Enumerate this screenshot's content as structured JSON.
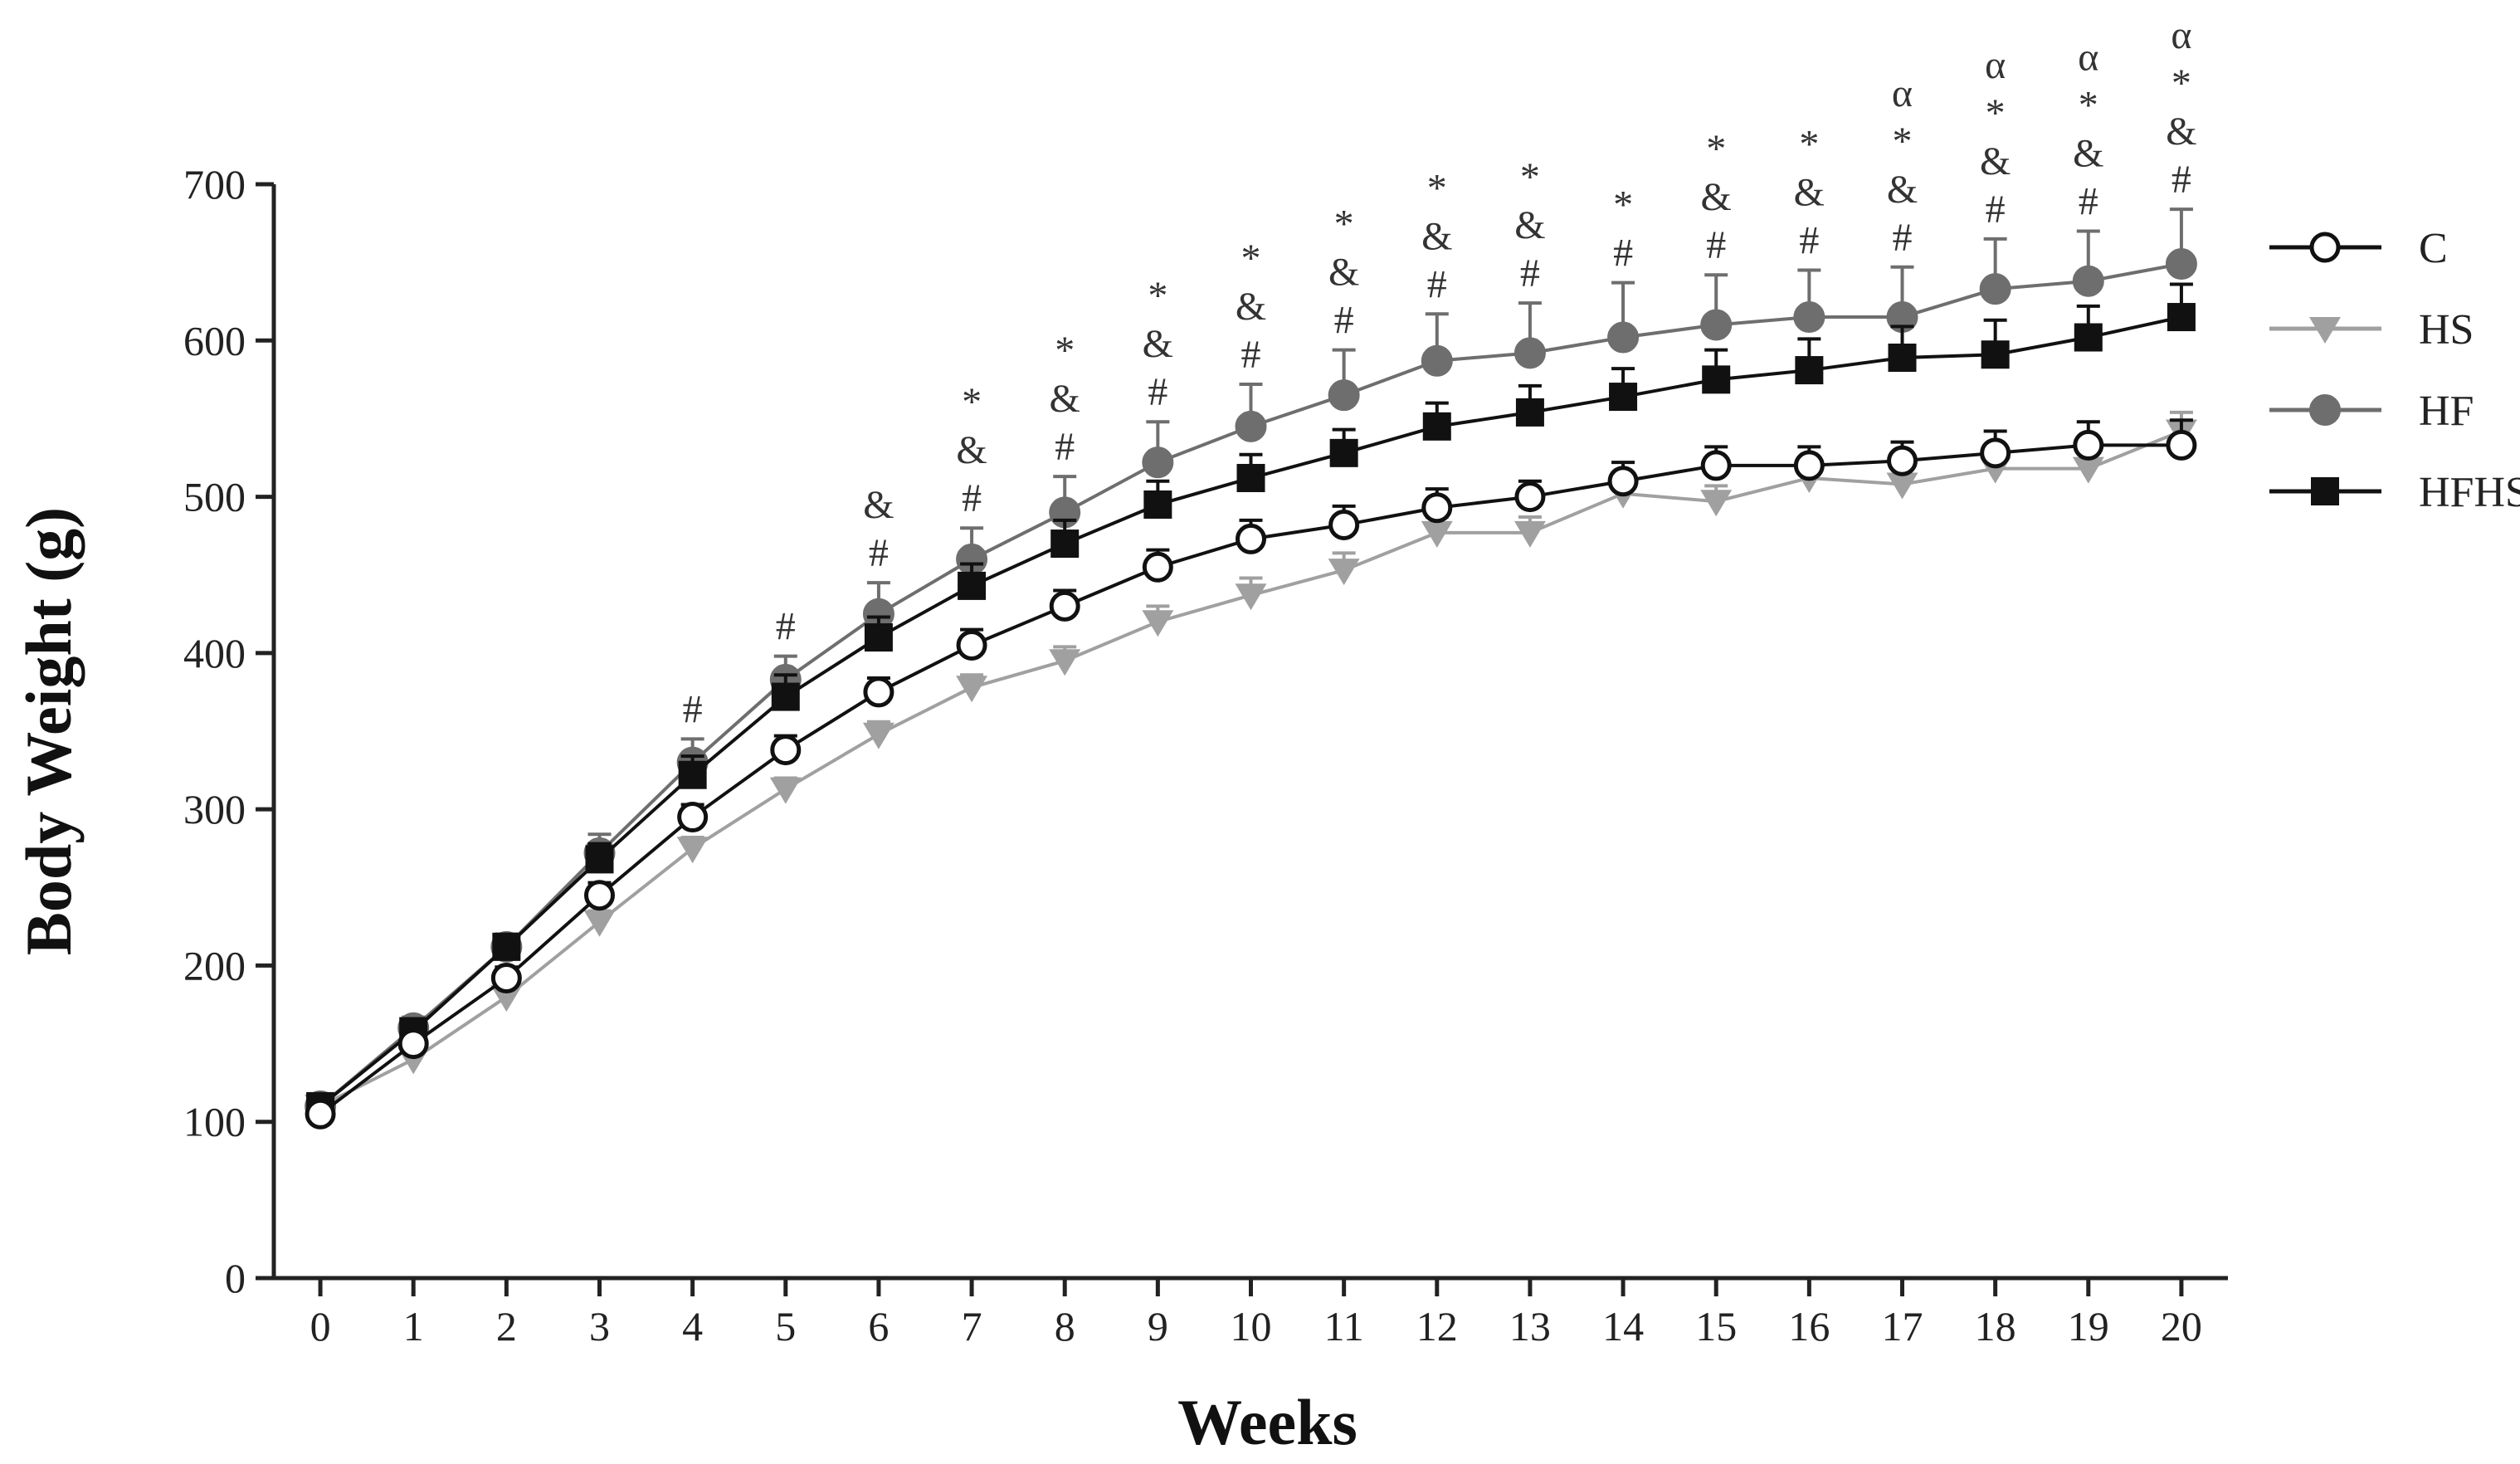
{
  "chart_data": {
    "type": "line",
    "title": "",
    "xlabel": "Weeks",
    "ylabel": "Body Weight (g)",
    "xlim": [
      -0.5,
      20.5
    ],
    "ylim": [
      0,
      700
    ],
    "xticks": [
      "0",
      "1",
      "2",
      "3",
      "4",
      "5",
      "6",
      "7",
      "8",
      "9",
      "10",
      "11",
      "12",
      "13",
      "14",
      "15",
      "16",
      "17",
      "18",
      "19",
      "20"
    ],
    "yticks": [
      "0",
      "100",
      "200",
      "300",
      "400",
      "500",
      "600",
      "700"
    ],
    "ytick_values": [
      0,
      100,
      200,
      300,
      400,
      500,
      600,
      700
    ],
    "x": [
      0,
      1,
      2,
      3,
      4,
      5,
      6,
      7,
      8,
      9,
      10,
      11,
      12,
      13,
      14,
      15,
      16,
      17,
      18,
      19,
      20
    ],
    "legend_position": "right",
    "series": [
      {
        "name": "C",
        "marker": "open-circle",
        "color": "#111111",
        "values": [
          105,
          150,
          192,
          245,
          295,
          338,
          375,
          405,
          430,
          455,
          473,
          482,
          493,
          500,
          510,
          520,
          520,
          523,
          528,
          533,
          533
        ],
        "errors": [
          5,
          6,
          7,
          8,
          8,
          9,
          9,
          10,
          10,
          11,
          12,
          12,
          12,
          10,
          12,
          12,
          12,
          12,
          14,
          15,
          16
        ]
      },
      {
        "name": "HS",
        "marker": "down-triangle",
        "color": "#a0a0a0",
        "values": [
          110,
          140,
          180,
          228,
          275,
          313,
          348,
          378,
          395,
          420,
          437,
          453,
          477,
          477,
          502,
          497,
          512,
          508,
          518,
          518,
          542
        ],
        "errors": [
          4,
          5,
          6,
          7,
          7,
          7,
          8,
          8,
          9,
          10,
          11,
          11,
          10,
          10,
          12,
          10,
          10,
          10,
          10,
          10,
          12
        ]
      },
      {
        "name": "HF",
        "marker": "filled-circle",
        "color": "#6e6e6e",
        "values": [
          110,
          160,
          212,
          272,
          330,
          383,
          425,
          460,
          490,
          522,
          545,
          565,
          587,
          592,
          602,
          610,
          615,
          615,
          633,
          638,
          649
        ],
        "errors": [
          6,
          7,
          8,
          12,
          15,
          15,
          20,
          20,
          23,
          26,
          27,
          29,
          30,
          32,
          35,
          32,
          30,
          32,
          32,
          32,
          35
        ]
      },
      {
        "name": "HFHS",
        "marker": "filled-square",
        "color": "#111111",
        "values": [
          110,
          158,
          212,
          268,
          322,
          372,
          410,
          443,
          470,
          495,
          512,
          528,
          545,
          554,
          564,
          575,
          581,
          589,
          591,
          602,
          615
        ],
        "errors": [
          5,
          7,
          8,
          10,
          12,
          14,
          13,
          14,
          15,
          15,
          15,
          15,
          15,
          17,
          18,
          19,
          20,
          20,
          22,
          20,
          21
        ]
      }
    ],
    "significance": [
      {
        "week": 4,
        "symbols": [
          "#"
        ]
      },
      {
        "week": 5,
        "symbols": [
          "#"
        ]
      },
      {
        "week": 6,
        "symbols": [
          "&",
          "#"
        ]
      },
      {
        "week": 7,
        "symbols": [
          "*",
          "&",
          "#"
        ]
      },
      {
        "week": 8,
        "symbols": [
          "*",
          "&",
          "#"
        ]
      },
      {
        "week": 9,
        "symbols": [
          "*",
          "&",
          "#"
        ]
      },
      {
        "week": 10,
        "symbols": [
          "*",
          "&",
          "#"
        ]
      },
      {
        "week": 11,
        "symbols": [
          "*",
          "&",
          "#"
        ]
      },
      {
        "week": 12,
        "symbols": [
          "*",
          "&",
          "#"
        ]
      },
      {
        "week": 13,
        "symbols": [
          "*",
          "&",
          "#"
        ]
      },
      {
        "week": 14,
        "symbols": [
          "*",
          "#"
        ]
      },
      {
        "week": 15,
        "symbols": [
          "*",
          "&",
          "#"
        ]
      },
      {
        "week": 16,
        "symbols": [
          "*",
          "&",
          "#"
        ]
      },
      {
        "week": 17,
        "symbols": [
          "α",
          "*",
          "&",
          "#"
        ]
      },
      {
        "week": 18,
        "symbols": [
          "α",
          "*",
          "&",
          "#"
        ]
      },
      {
        "week": 19,
        "symbols": [
          "α",
          "*",
          "&",
          "#"
        ]
      },
      {
        "week": 20,
        "symbols": [
          "α",
          "*",
          "&",
          "#"
        ]
      }
    ]
  }
}
